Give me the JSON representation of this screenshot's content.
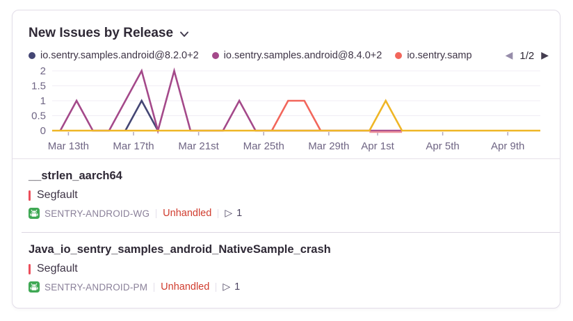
{
  "icons": {
    "prev": "◀",
    "next": "▶",
    "play": "▷"
  },
  "colors": {
    "title_text": "#2f2936",
    "axis_label": "#6f6584",
    "grid": "#f0edf4",
    "tick": "#b0a7bf",
    "level_bar": "#ec4e5b",
    "unhandled": "#d03c2e",
    "android": "#3fa854",
    "divider": "#e6e1ea"
  },
  "widget": {
    "title": "New Issues by Release",
    "legend": [
      {
        "label": "io.sentry.samples.android@8.2.0+2",
        "color": "#444674"
      },
      {
        "label": "io.sentry.samples.android@8.4.0+2",
        "color": "#a4498a"
      },
      {
        "label": "io.sentry.samp",
        "color": "#f2665b"
      }
    ],
    "pagination": {
      "current": "1/2"
    }
  },
  "chart_data": {
    "type": "line",
    "title": "New Issues by Release",
    "xlabel": "",
    "ylabel": "",
    "ylim": [
      0,
      2
    ],
    "y_ticks": [
      0,
      0.5,
      1,
      1.5,
      2
    ],
    "grid": true,
    "legend_position": "top",
    "dates": [
      "Mar 12",
      "Mar 13",
      "Mar 14",
      "Mar 15",
      "Mar 16",
      "Mar 17",
      "Mar 18",
      "Mar 19",
      "Mar 20",
      "Mar 21",
      "Mar 22",
      "Mar 23",
      "Mar 24",
      "Mar 25",
      "Mar 26",
      "Mar 27",
      "Mar 28",
      "Mar 29",
      "Mar 30",
      "Mar 31",
      "Apr 1",
      "Apr 2",
      "Apr 3",
      "Apr 4",
      "Apr 5",
      "Apr 6",
      "Apr 7",
      "Apr 8",
      "Apr 9",
      "Apr 10"
    ],
    "x_ticks": [
      {
        "label": "Mar 13th",
        "date": "Mar 13"
      },
      {
        "label": "Mar 17th",
        "date": "Mar 17"
      },
      {
        "label": "Mar 21st",
        "date": "Mar 21"
      },
      {
        "label": "Mar 25th",
        "date": "Mar 25"
      },
      {
        "label": "Mar 29th",
        "date": "Mar 29"
      },
      {
        "label": "Apr 1st",
        "date": "Apr 1"
      },
      {
        "label": "Apr 5th",
        "date": "Apr 5"
      },
      {
        "label": "Apr 9th",
        "date": "Apr 9"
      }
    ],
    "series": [
      {
        "name": "io.sentry.samples.android@8.2.0+2",
        "color": "#444674",
        "points": [
          [
            "Mar 16",
            0
          ],
          [
            "Mar 17",
            1
          ],
          [
            "Mar 18",
            0
          ]
        ]
      },
      {
        "name": "io.sentry.samples.android@8.4.0+2",
        "color": "#a4498a",
        "points": [
          [
            "Mar 12",
            0
          ],
          [
            "Mar 13",
            1
          ],
          [
            "Mar 14",
            0
          ],
          [
            "Mar 15",
            0
          ],
          [
            "Mar 16",
            1
          ],
          [
            "Mar 17",
            2
          ],
          [
            "Mar 18",
            0
          ],
          [
            "Mar 19",
            2
          ],
          [
            "Mar 20",
            0
          ],
          [
            "Mar 21",
            0
          ],
          [
            "Mar 22",
            0
          ],
          [
            "Mar 23",
            1
          ],
          [
            "Mar 24",
            0
          ],
          [
            "Mar 25",
            0
          ],
          [
            "Mar 26",
            0
          ],
          [
            "Mar 27",
            0
          ],
          [
            "Mar 28",
            0
          ],
          [
            "Mar 29",
            0
          ],
          [
            "Mar 30",
            0
          ],
          [
            "Mar 31",
            0
          ],
          [
            "Apr 1",
            0
          ],
          [
            "Apr 2",
            0
          ]
        ]
      },
      {
        "name": "io.sentry.samp",
        "color": "#f2665b",
        "points": [
          [
            "Mar 25",
            0
          ],
          [
            "Mar 26",
            1
          ],
          [
            "Mar 27",
            1
          ],
          [
            "Mar 28",
            0
          ]
        ]
      },
      {
        "name": "",
        "color": "#ee929c",
        "dy": 2,
        "points": [
          [
            "Mar 31",
            0
          ],
          [
            "Apr 1",
            0
          ],
          [
            "Apr 2",
            0
          ]
        ]
      },
      {
        "name": "",
        "color": "#efb626",
        "extend": true,
        "points": [
          [
            "Mar 12",
            0
          ],
          [
            "Mar 13",
            0
          ],
          [
            "Mar 14",
            0
          ],
          [
            "Mar 15",
            0
          ],
          [
            "Mar 16",
            0
          ],
          [
            "Mar 17",
            0
          ],
          [
            "Mar 18",
            0
          ],
          [
            "Mar 19",
            0
          ],
          [
            "Mar 20",
            0
          ],
          [
            "Mar 21",
            0
          ],
          [
            "Mar 22",
            0
          ],
          [
            "Mar 23",
            0
          ],
          [
            "Mar 24",
            0
          ],
          [
            "Mar 25",
            0
          ],
          [
            "Mar 26",
            0
          ],
          [
            "Mar 27",
            0
          ],
          [
            "Mar 28",
            0
          ],
          [
            "Mar 29",
            0
          ],
          [
            "Mar 30",
            0
          ],
          [
            "Mar 31",
            0
          ],
          [
            "Apr 1",
            1
          ],
          [
            "Apr 2",
            0
          ],
          [
            "Apr 3",
            0
          ],
          [
            "Apr 4",
            0
          ],
          [
            "Apr 5",
            0
          ],
          [
            "Apr 6",
            0
          ],
          [
            "Apr 7",
            0
          ],
          [
            "Apr 8",
            0
          ],
          [
            "Apr 9",
            0
          ],
          [
            "Apr 10",
            0
          ]
        ]
      }
    ]
  },
  "issues": [
    {
      "title": "__strlen_aarch64",
      "type": "Segfault",
      "project": "SENTRY-ANDROID-WG",
      "handling": "Unhandled",
      "count": "1"
    },
    {
      "title": "Java_io_sentry_samples_android_NativeSample_crash",
      "type": "Segfault",
      "project": "SENTRY-ANDROID-PM",
      "handling": "Unhandled",
      "count": "1"
    }
  ]
}
